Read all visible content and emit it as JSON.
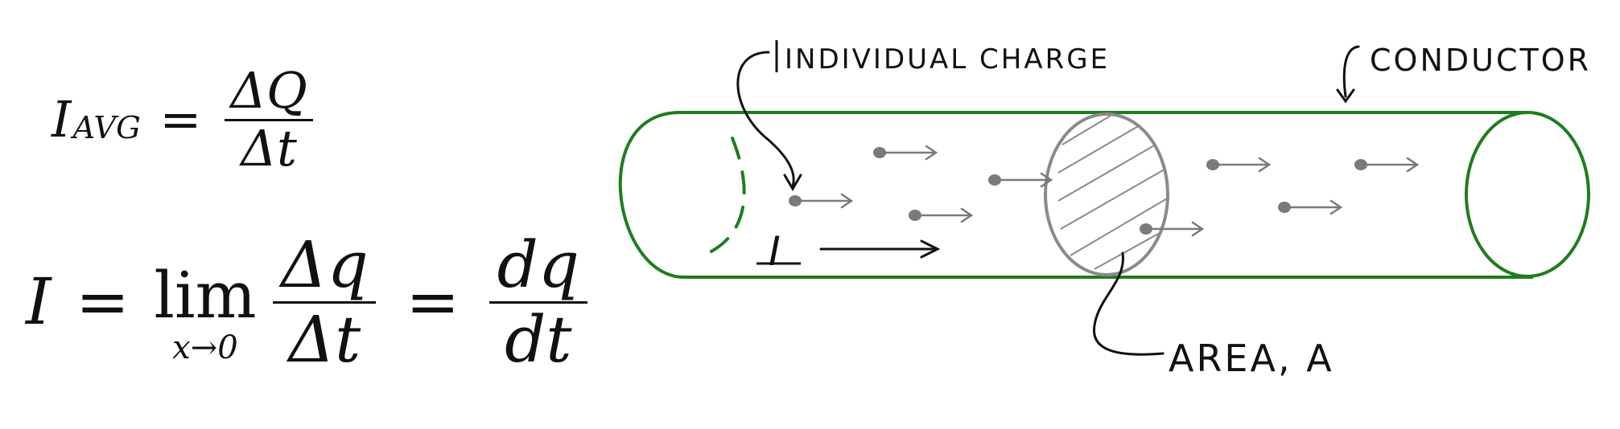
{
  "equations": {
    "average": {
      "lhs_symbol": "I",
      "lhs_subscript": "AVG",
      "equals": "=",
      "numerator": "ΔQ",
      "denominator": "Δt"
    },
    "instant": {
      "lhs_symbol": "I",
      "equals": "=",
      "lim_word": "lim",
      "lim_sub": "x→0",
      "numerator1": "Δq",
      "denominator1": "Δt",
      "equals2": "=",
      "numerator2": "dq",
      "denominator2": "dt"
    }
  },
  "diagram": {
    "labels": {
      "individual_charge": "INDIVIDUAL CHARGE",
      "conductor": "CONDUCTOR",
      "area": "AREA, A",
      "current": "I"
    },
    "colors": {
      "conductor": "#1e7d1e",
      "cross_section": "#8a8a8a",
      "charge": "#7a7a7a",
      "ink": "#111111"
    }
  }
}
